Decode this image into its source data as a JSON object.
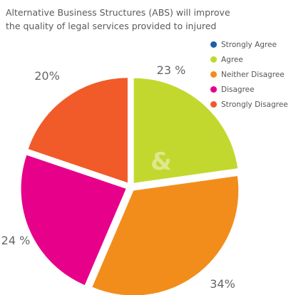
{
  "chart_data": {
    "type": "pie",
    "title_lines": [
      "Alternative Business Structures (ABS) will improve",
      "the quality of legal services provided to injured"
    ],
    "legend": [
      {
        "label": "Strongly Agree",
        "color": "#1f5fa6"
      },
      {
        "label": "Agree",
        "color": "#c2d82e"
      },
      {
        "label": "Neither Disagree",
        "color": "#f28d1b"
      },
      {
        "label": "Disagree",
        "color": "#e6008a"
      },
      {
        "label": "Strongly Disagree",
        "color": "#f15a29"
      }
    ],
    "slices": [
      {
        "name": "Agree",
        "value": 23,
        "label": "23 %",
        "color": "#c2d82e"
      },
      {
        "name": "Neither Disagree",
        "value": 34,
        "label": "34%",
        "color": "#f28d1b"
      },
      {
        "name": "Disagree",
        "value": 24,
        "label": "24 %",
        "color": "#e6008a"
      },
      {
        "name": "Strongly Disagree",
        "value": 20,
        "label": "20%",
        "color": "#f15a29"
      }
    ],
    "watermark": "&"
  }
}
